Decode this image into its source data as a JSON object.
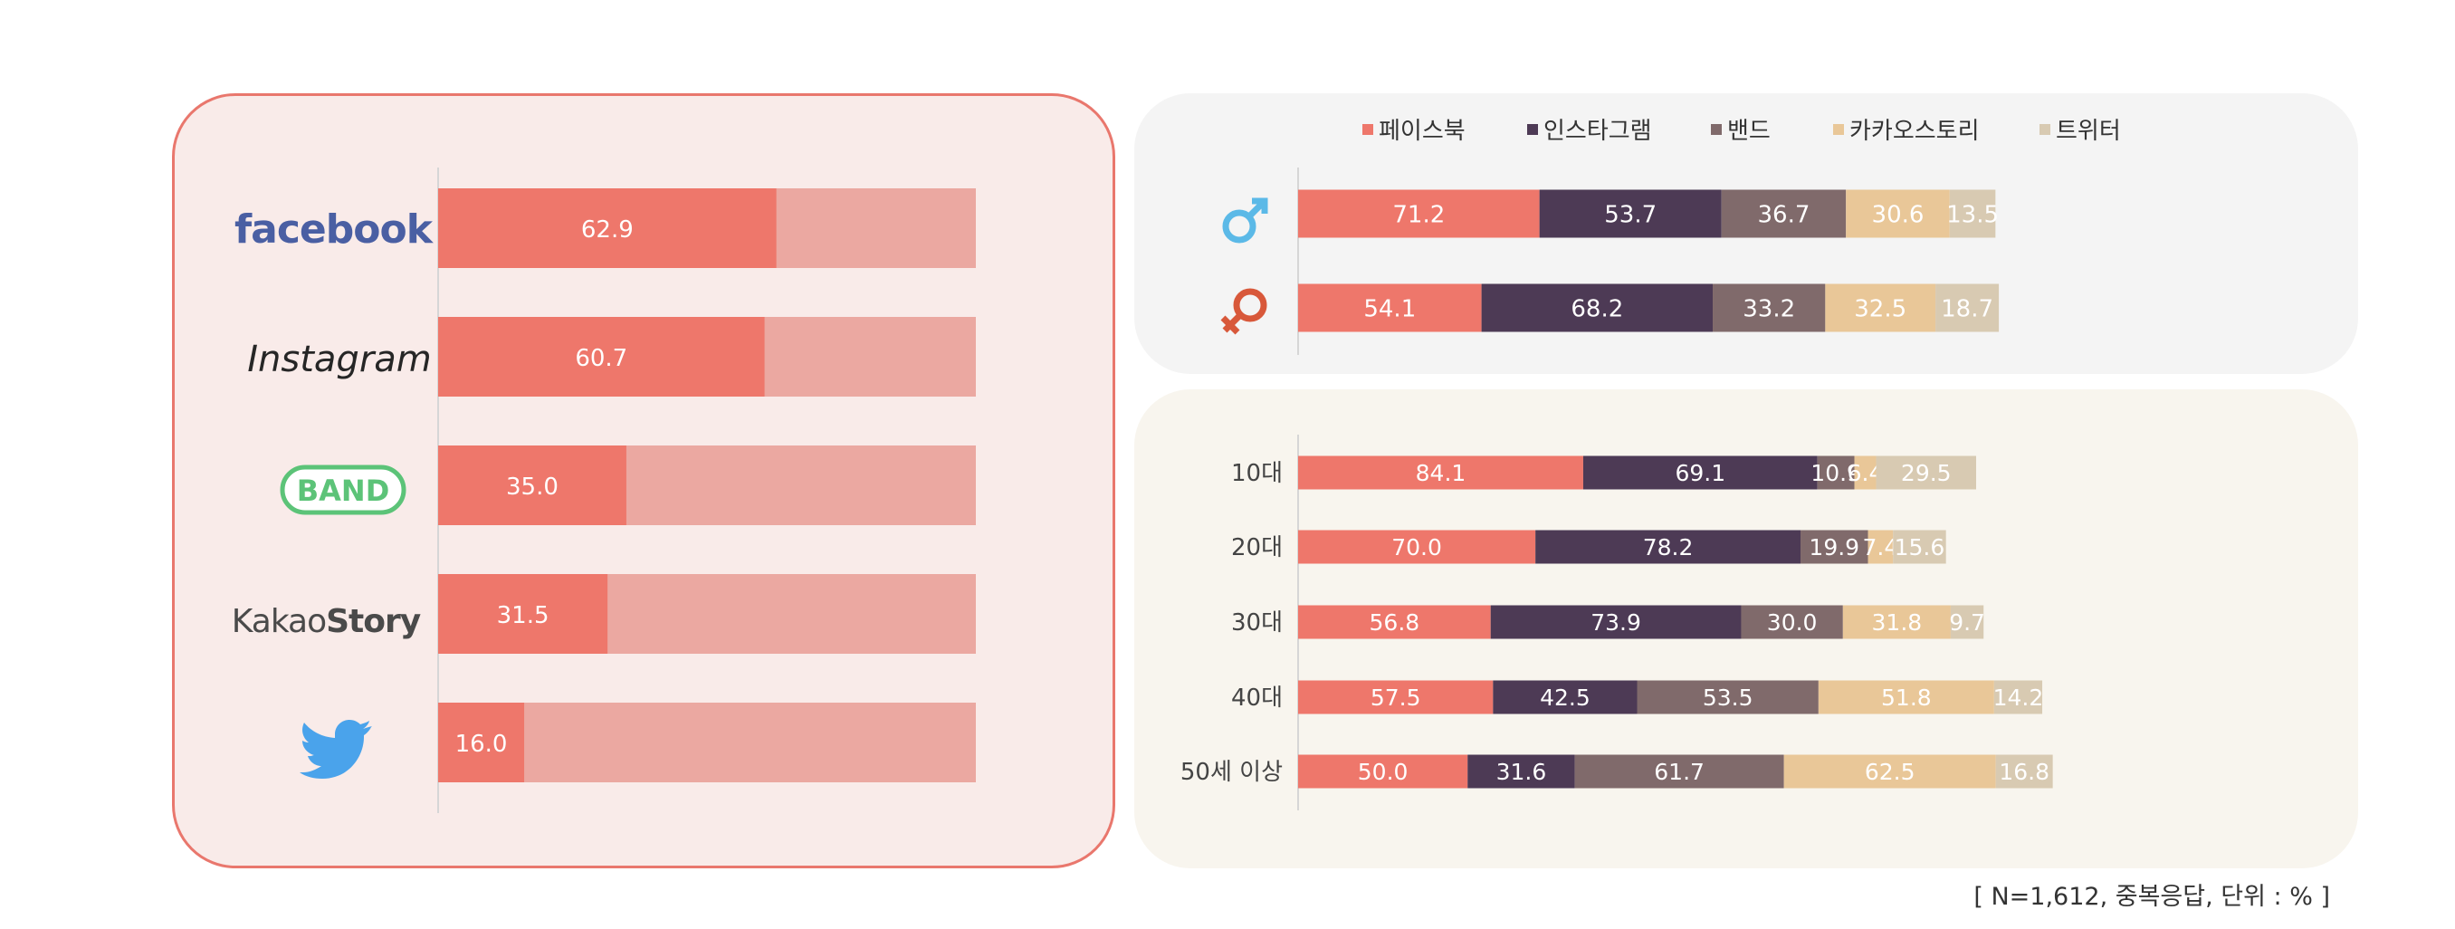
{
  "colors": {
    "facebook": "#ee776b",
    "instagram": "#4d3a55",
    "band": "#806a6b",
    "kakaostory": "#e9c798",
    "twitter": "#d8cab2",
    "track": "#eba8a1"
  },
  "legend": [
    "페이스북",
    "인스타그램",
    "밴드",
    "카카오스토리",
    "트위터"
  ],
  "logos": {
    "facebook": "facebook",
    "instagram": "Instagram",
    "band": "BAND",
    "kakaostory_a": "Kakao",
    "kakaostory_b": "Story",
    "twitter_icon": "twitter-bird-icon"
  },
  "footnote": "[ N=1,612, 중복응답, 단위 : % ]",
  "chart_data": [
    {
      "type": "bar",
      "categories": [
        "facebook",
        "Instagram",
        "BAND",
        "KakaoStory",
        "twitter"
      ],
      "values": [
        62.9,
        60.7,
        35.0,
        31.5,
        16.0
      ],
      "labels": [
        "62.9",
        "60.7",
        "35.0",
        "31.5",
        "16.0"
      ],
      "xlim": [
        0,
        100
      ],
      "orientation": "horizontal",
      "grid": false
    },
    {
      "type": "bar",
      "stacked": true,
      "orientation": "horizontal",
      "categories": [
        "♂",
        "♀"
      ],
      "category_icons": [
        "male-symbol-icon",
        "female-symbol-icon"
      ],
      "series": [
        {
          "name": "페이스북",
          "values": [
            71.2,
            54.1
          ],
          "labels": [
            "71.2",
            "54.1"
          ]
        },
        {
          "name": "인스타그램",
          "values": [
            53.7,
            68.2
          ],
          "labels": [
            "53.7",
            "68.2"
          ]
        },
        {
          "name": "밴드",
          "values": [
            36.7,
            33.2
          ],
          "labels": [
            "36.7",
            "33.2"
          ]
        },
        {
          "name": "카카오스토리",
          "values": [
            30.6,
            32.5
          ],
          "labels": [
            "30.6",
            "32.5"
          ]
        },
        {
          "name": "트위터",
          "values": [
            13.5,
            18.7
          ],
          "labels": [
            "13.5",
            "18.7"
          ]
        }
      ],
      "legend_position": "top",
      "grid": false
    },
    {
      "type": "bar",
      "stacked": true,
      "orientation": "horizontal",
      "categories": [
        "10대",
        "20대",
        "30대",
        "40대",
        "50세 이상"
      ],
      "series": [
        {
          "name": "페이스북",
          "values": [
            84.1,
            70.0,
            56.8,
            57.5,
            50.0
          ],
          "labels": [
            "84.1",
            "70.0",
            "56.8",
            "57.5",
            "50.0"
          ]
        },
        {
          "name": "인스타그램",
          "values": [
            69.1,
            78.2,
            73.9,
            42.5,
            31.6
          ],
          "labels": [
            "69.1",
            "78.2",
            "73.9",
            "42.5",
            "31.6"
          ]
        },
        {
          "name": "밴드",
          "values": [
            10.9,
            19.9,
            30.0,
            53.5,
            61.7
          ],
          "labels": [
            "10.9",
            "19.9",
            "30.0",
            "53.5",
            "61.7"
          ]
        },
        {
          "name": "카카오스토리",
          "values": [
            6.4,
            7.4,
            31.8,
            51.8,
            62.5
          ],
          "labels": [
            "6.4",
            "7.4",
            "31.8",
            "51.8",
            "62.5"
          ]
        },
        {
          "name": "트위터",
          "values": [
            29.5,
            15.6,
            9.7,
            14.2,
            16.8
          ],
          "labels": [
            "29.5",
            "15.6",
            "9.7",
            "14.2",
            "16.8"
          ]
        }
      ],
      "grid": false
    }
  ]
}
